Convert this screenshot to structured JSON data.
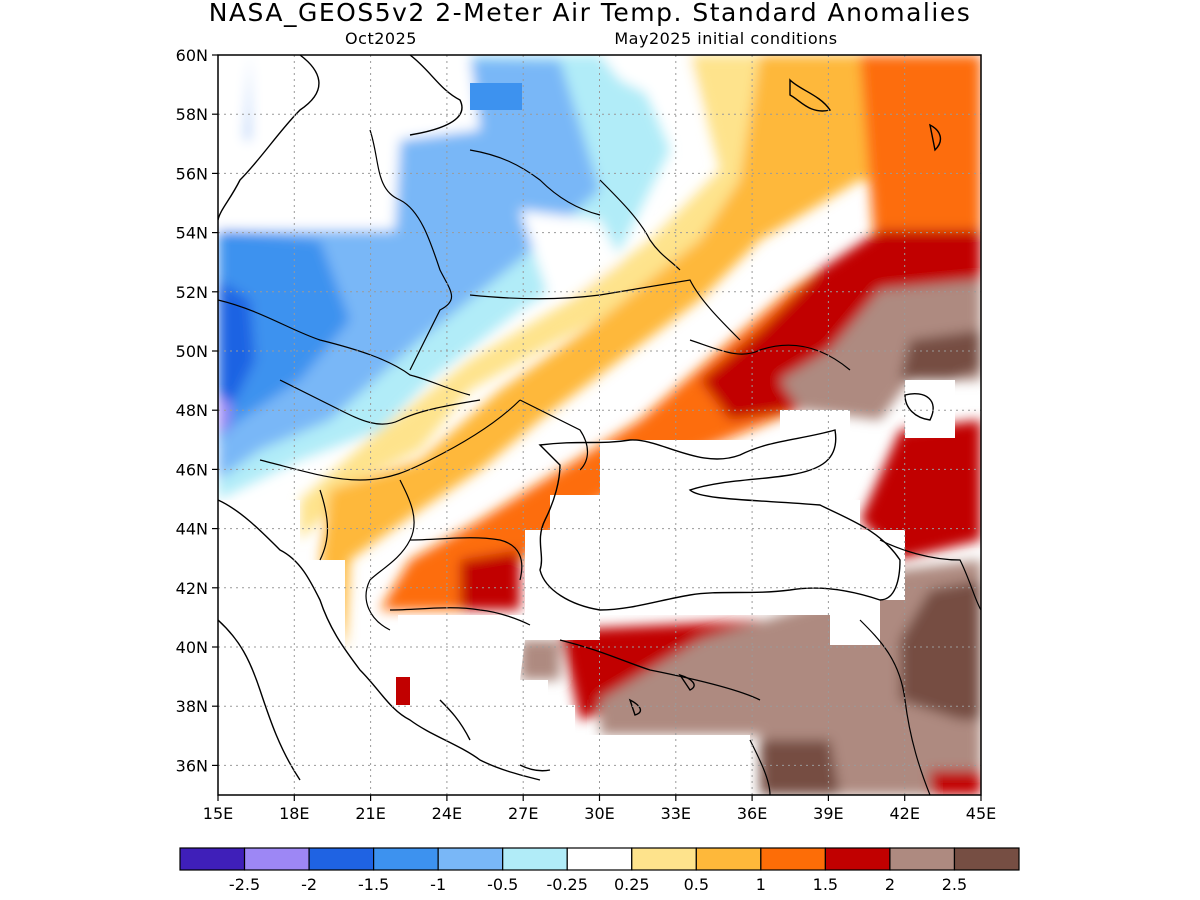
{
  "title": "NASA_GEOS5v2 2-Meter Air Temp. Standard Anomalies",
  "subtitle_left": "Oct2025",
  "subtitle_right": "May2025 initial conditions",
  "map": {
    "lon_range": [
      15,
      45
    ],
    "lat_range": [
      35,
      60
    ],
    "x_ticks": [
      {
        "value": 15,
        "label": "15E"
      },
      {
        "value": 18,
        "label": "18E"
      },
      {
        "value": 21,
        "label": "21E"
      },
      {
        "value": 24,
        "label": "24E"
      },
      {
        "value": 27,
        "label": "27E"
      },
      {
        "value": 30,
        "label": "30E"
      },
      {
        "value": 33,
        "label": "33E"
      },
      {
        "value": 36,
        "label": "36E"
      },
      {
        "value": 39,
        "label": "39E"
      },
      {
        "value": 42,
        "label": "42E"
      },
      {
        "value": 45,
        "label": "45E"
      }
    ],
    "y_ticks": [
      {
        "value": 36,
        "label": "36N"
      },
      {
        "value": 38,
        "label": "38N"
      },
      {
        "value": 40,
        "label": "40N"
      },
      {
        "value": 42,
        "label": "42N"
      },
      {
        "value": 44,
        "label": "44N"
      },
      {
        "value": 46,
        "label": "46N"
      },
      {
        "value": 48,
        "label": "48N"
      },
      {
        "value": 50,
        "label": "50N"
      },
      {
        "value": 52,
        "label": "52N"
      },
      {
        "value": 54,
        "label": "54N"
      },
      {
        "value": 56,
        "label": "56N"
      },
      {
        "value": 58,
        "label": "58N"
      },
      {
        "value": 60,
        "label": "60N"
      }
    ],
    "grid": true
  },
  "colorbar": {
    "colors": [
      "#3f1fb9",
      "#9d87f5",
      "#1f63e3",
      "#3d92ef",
      "#79b7f7",
      "#b1ecf8",
      "#ffffff",
      "#fee38c",
      "#feb83a",
      "#fd6d07",
      "#c10000",
      "#ae8a80",
      "#764e43"
    ],
    "labels": [
      "-2.5",
      "-2",
      "-1.5",
      "-1",
      "-0.5",
      "-0.25",
      "0.25",
      "0.5",
      "1",
      "1.5",
      "2",
      "2.5"
    ]
  },
  "colors": {
    "frame": "#000000",
    "grid": "#9a9a9a",
    "coast": "#000000"
  }
}
